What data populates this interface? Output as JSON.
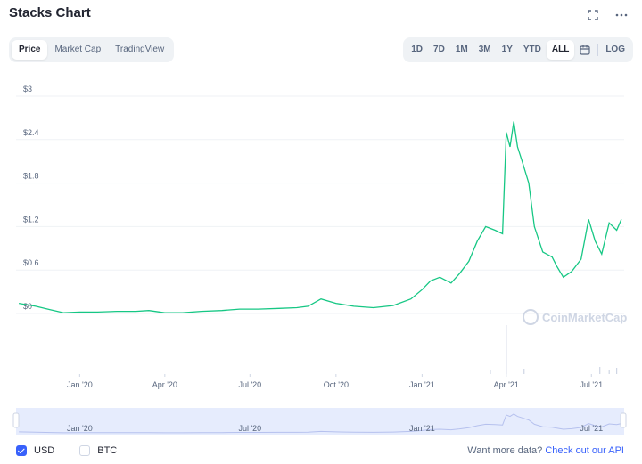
{
  "header": {
    "title": "Stacks Chart"
  },
  "top_icons": [
    "fullscreen-icon",
    "more-icon"
  ],
  "tabs": [
    {
      "label": "Price",
      "active": true
    },
    {
      "label": "Market Cap",
      "active": false
    },
    {
      "label": "TradingView",
      "active": false
    }
  ],
  "ranges": [
    {
      "label": "1D",
      "active": false
    },
    {
      "label": "7D",
      "active": false
    },
    {
      "label": "1M",
      "active": false
    },
    {
      "label": "3M",
      "active": false
    },
    {
      "label": "1Y",
      "active": false
    },
    {
      "label": "YTD",
      "active": false
    },
    {
      "label": "ALL",
      "active": true
    }
  ],
  "range_icon": "calendar-icon",
  "log_label": "LOG",
  "watermark": "CoinMarketCap",
  "legend": {
    "usd": {
      "label": "USD",
      "checked": true
    },
    "btc": {
      "label": "BTC",
      "checked": false
    }
  },
  "api": {
    "text": "Want more data? ",
    "link": "Check out our API"
  },
  "colors": {
    "line": "#16c784",
    "accent": "#3861fb",
    "navigator": "#c7d0f8"
  },
  "chart_data": {
    "type": "line",
    "y_ticks": [
      "$3",
      "$2.4",
      "$1.8",
      "$1.2",
      "$0.6",
      "$0"
    ],
    "ylim": [
      0,
      3
    ],
    "x_ticks": [
      "Jan '20",
      "Apr '20",
      "Jul '20",
      "Oct '20",
      "Jan '21",
      "Apr '21",
      "Jul '21"
    ],
    "navigator_ticks": [
      "Jan '20",
      "Jul '20",
      "Jan '21",
      "Jul '21"
    ],
    "series": [
      {
        "x": [
          "2019-10-28",
          "2019-11-15",
          "2019-12-01",
          "2019-12-15",
          "2020-01-01",
          "2020-01-20",
          "2020-02-10",
          "2020-03-01",
          "2020-03-15",
          "2020-04-01",
          "2020-04-20",
          "2020-05-10",
          "2020-06-01",
          "2020-06-20",
          "2020-07-10",
          "2020-08-01",
          "2020-08-20",
          "2020-09-01",
          "2020-09-15",
          "2020-10-01",
          "2020-10-20",
          "2020-11-10",
          "2020-12-01",
          "2020-12-20",
          "2021-01-01",
          "2021-01-10",
          "2021-01-20",
          "2021-02-01",
          "2021-02-10",
          "2021-02-20",
          "2021-03-01",
          "2021-03-10",
          "2021-03-20",
          "2021-03-28",
          "2021-04-01",
          "2021-04-05",
          "2021-04-09",
          "2021-04-13",
          "2021-04-18",
          "2021-04-25",
          "2021-05-01",
          "2021-05-10",
          "2021-05-20",
          "2021-05-25",
          "2021-06-01",
          "2021-06-10",
          "2021-06-20",
          "2021-06-28",
          "2021-07-05",
          "2021-07-12",
          "2021-07-20",
          "2021-07-28",
          "2021-08-02"
        ],
        "y": [
          0.14,
          0.1,
          0.05,
          0.01,
          0.02,
          0.02,
          0.03,
          0.03,
          0.04,
          0.01,
          0.01,
          0.03,
          0.04,
          0.06,
          0.06,
          0.07,
          0.08,
          0.1,
          0.2,
          0.14,
          0.1,
          0.08,
          0.11,
          0.2,
          0.33,
          0.45,
          0.5,
          0.42,
          0.55,
          0.72,
          1.0,
          1.2,
          1.15,
          1.1,
          2.5,
          2.3,
          2.65,
          2.3,
          2.1,
          1.8,
          1.2,
          0.85,
          0.78,
          0.65,
          0.5,
          0.58,
          0.75,
          1.3,
          1.0,
          0.82,
          1.25,
          1.15,
          1.3
        ]
      }
    ]
  }
}
